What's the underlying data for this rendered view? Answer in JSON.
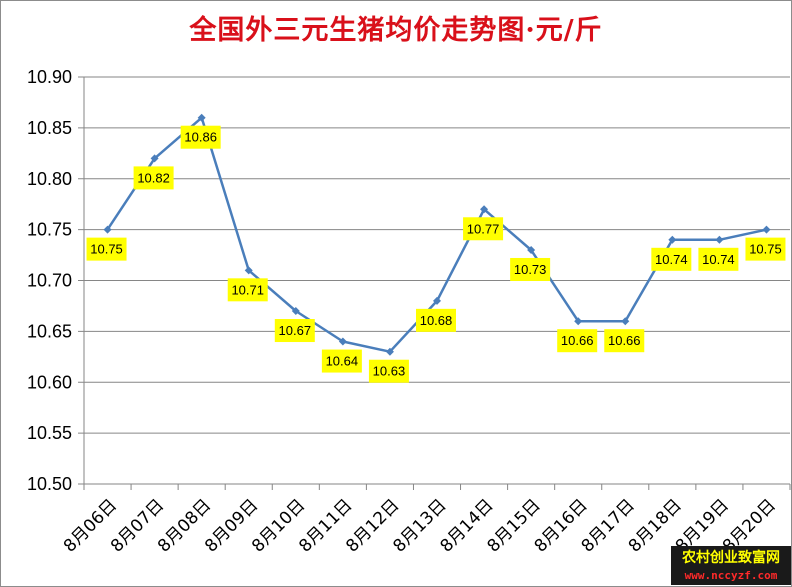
{
  "chart_data": {
    "type": "line",
    "title": "全国外三元生猪均价走势图·元/斤",
    "categories": [
      "8月06日",
      "8月07日",
      "8月08日",
      "8月09日",
      "8月10日",
      "8月11日",
      "8月12日",
      "8月13日",
      "8月14日",
      "8月15日",
      "8月16日",
      "8月17日",
      "8月18日",
      "8月19日",
      "8月20日"
    ],
    "values": [
      10.75,
      10.82,
      10.86,
      10.71,
      10.67,
      10.64,
      10.63,
      10.68,
      10.77,
      10.73,
      10.66,
      10.66,
      10.74,
      10.74,
      10.75
    ],
    "data_labels": [
      "10.75",
      "10.82",
      "10.86",
      "10.71",
      "10.67",
      "10.64",
      "10.63",
      "10.68",
      "10.77",
      "10.73",
      "10.66",
      "10.66",
      "10.74",
      "10.74",
      "10.75"
    ],
    "y_ticks": [
      "10.50",
      "10.55",
      "10.60",
      "10.65",
      "10.70",
      "10.75",
      "10.80",
      "10.85",
      "10.90"
    ],
    "ylim": [
      10.5,
      10.9
    ],
    "grid": true,
    "legend": "none"
  },
  "colors": {
    "title": "#d9101a",
    "line": "#4a7ebb",
    "label_bg": "#ffff00",
    "grid": "#868686"
  },
  "watermark": {
    "line1": "农村创业致富网",
    "line2": "www.nccyzf.com"
  }
}
